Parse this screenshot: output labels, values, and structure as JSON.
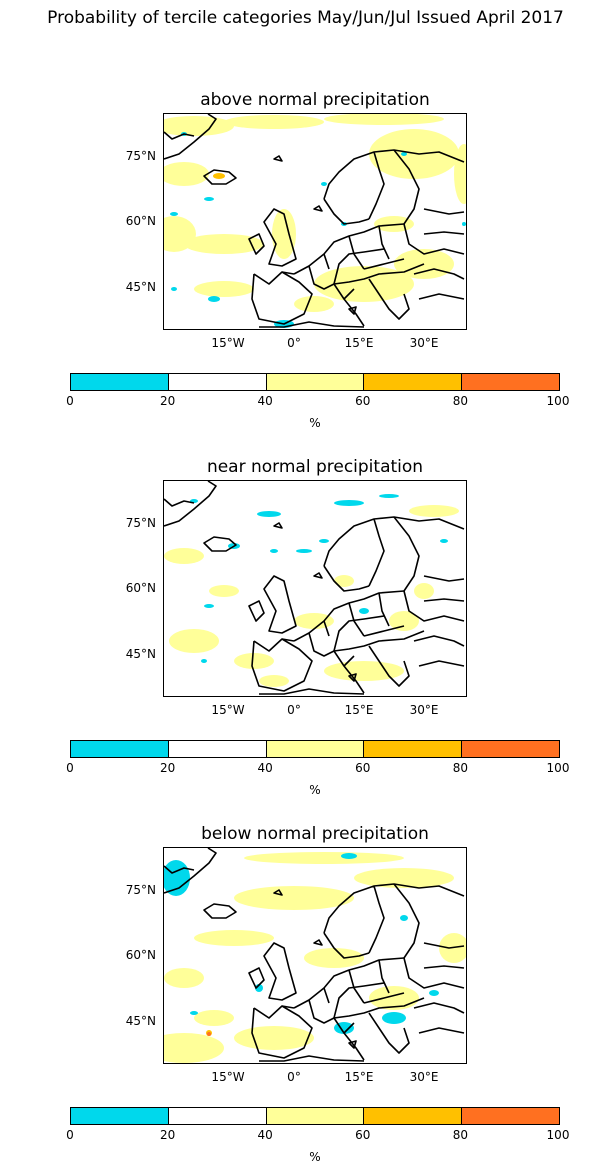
{
  "suptitle": "Probability of tercile categories May/Jun/Jul Issued April 2017",
  "panels": [
    {
      "title": "above normal precipitation"
    },
    {
      "title": "near normal precipitation"
    },
    {
      "title": "below normal precipitation"
    }
  ],
  "lat_ticks": [
    "75°N",
    "60°N",
    "45°N"
  ],
  "lon_ticks": [
    "15°W",
    "0°",
    "15°E",
    "30°E"
  ],
  "colorbar": {
    "levels": [
      "0",
      "20",
      "40",
      "60",
      "80",
      "100"
    ],
    "colors": [
      "#00d8ec",
      "#ffffff",
      "#ffff99",
      "#ffc000",
      "#ff7020"
    ],
    "label": "%"
  },
  "colors": {
    "coast": "#000000",
    "low": "#00d8ec",
    "mid": "#ffff99",
    "high": "#ffc000",
    "veryhigh": "#ff7020"
  }
}
